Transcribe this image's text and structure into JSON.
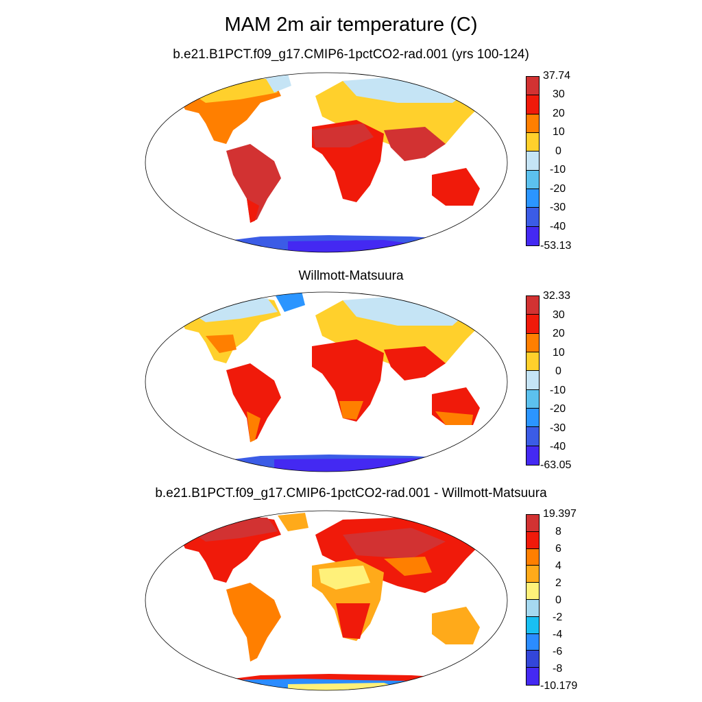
{
  "title": "MAM 2m air temperature (C)",
  "panels": [
    {
      "title": "b.e21.B1PCT.f09_g17.CMIP6-1pctCO2-rad.001 (yrs 100-124)",
      "labels": [
        "37.74",
        "30",
        "20",
        "10",
        "0",
        "-10",
        "-20",
        "-30",
        "-40",
        "-53.13"
      ],
      "colors": [
        "#d23232",
        "#f01a0a",
        "#ff7f00",
        "#ffd02c",
        "#c5e4f5",
        "#5cc1ee",
        "#2b95ff",
        "#3b5ce6",
        "#4429f2"
      ]
    },
    {
      "title": "Willmott-Matsuura",
      "labels": [
        "32.33",
        "30",
        "20",
        "10",
        "0",
        "-10",
        "-20",
        "-30",
        "-40",
        "-63.05"
      ],
      "colors": [
        "#d23232",
        "#f01a0a",
        "#ff7f00",
        "#ffd02c",
        "#c5e4f5",
        "#5cc1ee",
        "#2b95ff",
        "#3b5ce6",
        "#4429f2"
      ]
    },
    {
      "title": "b.e21.B1PCT.f09_g17.CMIP6-1pctCO2-rad.001 - Willmott-Matsuura",
      "labels": [
        "19.397",
        "8",
        "6",
        "4",
        "2",
        "0",
        "-2",
        "-4",
        "-6",
        "-8",
        "-10.179"
      ],
      "colors": [
        "#d23232",
        "#f01a0a",
        "#ff7f00",
        "#ffaa1a",
        "#fff17a",
        "#a6d9f0",
        "#19bff2",
        "#2b8cff",
        "#3346d9",
        "#4429f2"
      ]
    }
  ]
}
